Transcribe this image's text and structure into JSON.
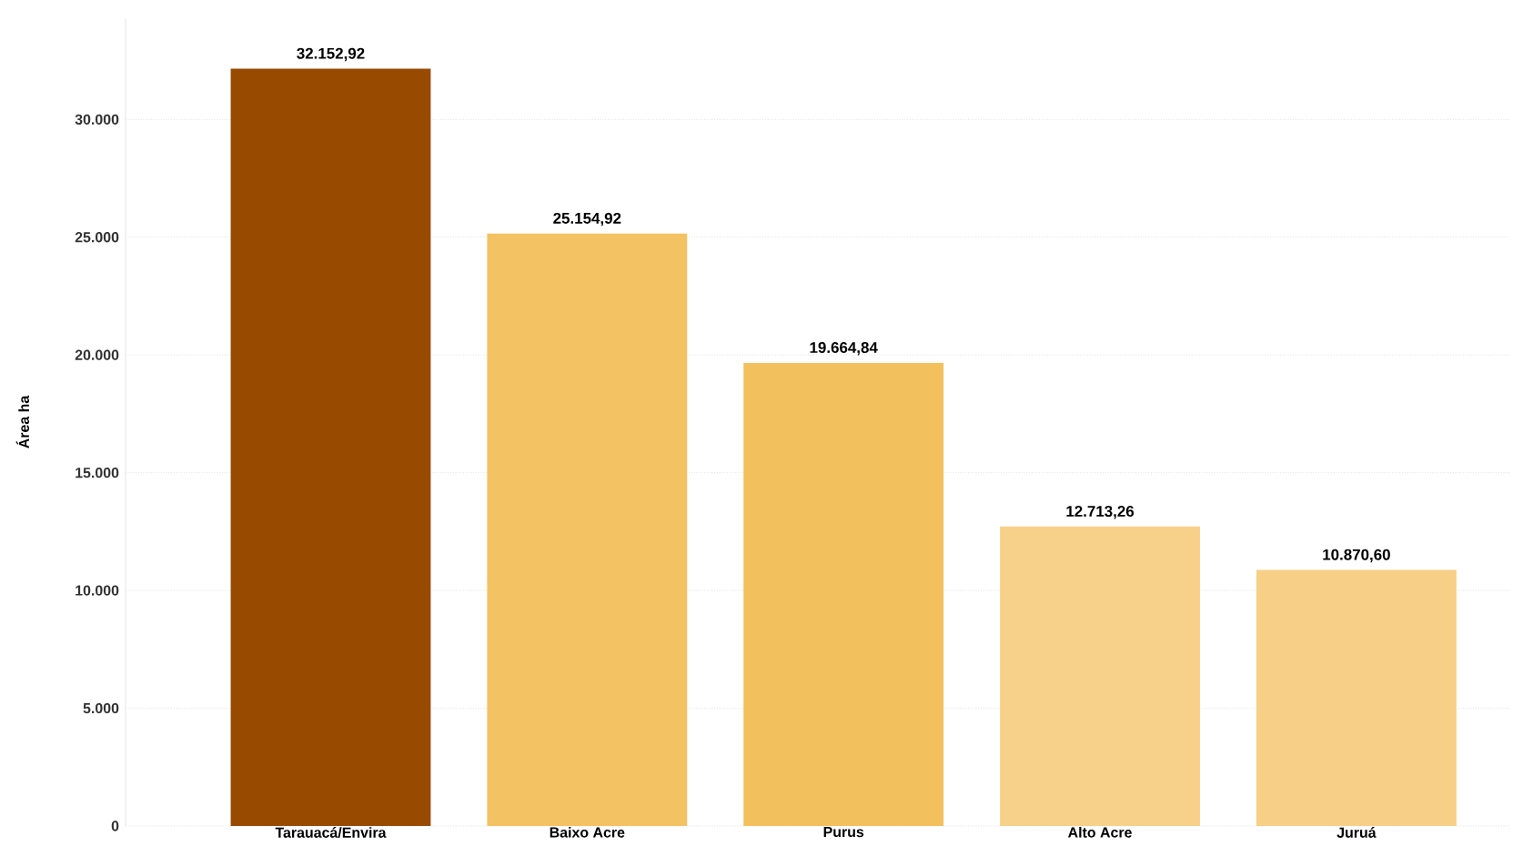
{
  "chart_data": {
    "type": "bar",
    "ylabel": "Área ha",
    "categories": [
      "Tarauacá/Envira",
      "Baixo Acre",
      "Purus",
      "Alto Acre",
      "Juruá"
    ],
    "values": [
      32152.92,
      25154.92,
      19664.84,
      12713.26,
      10870.6
    ],
    "value_labels": [
      "32.152,92",
      "25.154,92",
      "19.664,84",
      "12.713,26",
      "10.870,60"
    ],
    "colors": [
      "#984a00",
      "#f3c263",
      "#f2c05d",
      "#f7d089",
      "#f7cf86"
    ],
    "ylim": [
      0,
      34300
    ],
    "yticks": [
      0,
      {
        "value": 5000,
        "label": "5.000"
      },
      {
        "value": 10000,
        "label": "10.000"
      },
      {
        "value": 15000,
        "label": "15.000"
      },
      {
        "value": 20000,
        "label": "20.000"
      },
      {
        "value": 25000,
        "label": "25.000"
      },
      {
        "value": 30000,
        "label": "30.000"
      }
    ],
    "grid": "y"
  }
}
